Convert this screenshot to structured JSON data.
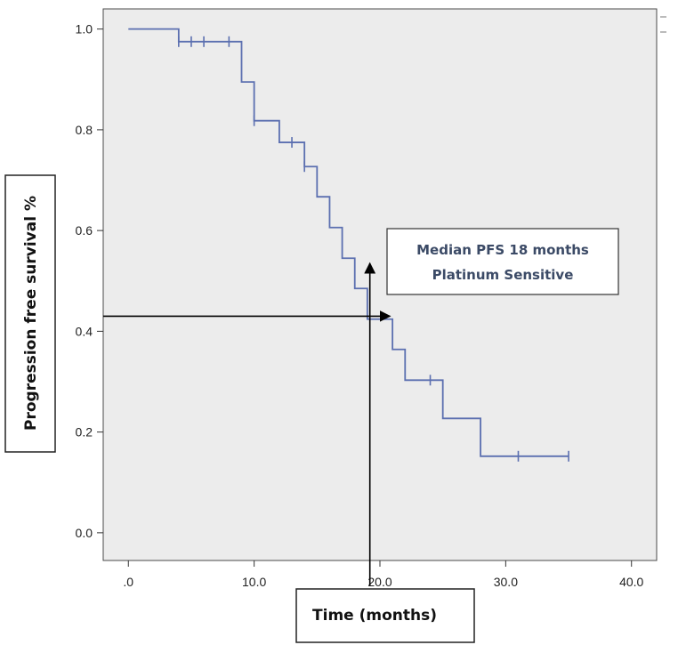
{
  "chart_data": {
    "type": "line",
    "subtype": "kaplan-meier step curve",
    "xlabel": "Time (months)",
    "ylabel": "Progression free survival %",
    "xlim": [
      -2,
      42
    ],
    "ylim": [
      -0.055,
      1.04
    ],
    "x_ticks": [
      0,
      10,
      20,
      30,
      40
    ],
    "x_tick_labels": [
      ".0",
      "10.0",
      "20.0",
      "30.0",
      "40.0"
    ],
    "y_ticks": [
      0,
      0.2,
      0.4,
      0.6,
      0.8,
      1.0
    ],
    "y_tick_labels": [
      "0.0",
      "0.2",
      "0.4",
      "0.6",
      "0.8",
      "1.0"
    ],
    "grid": false,
    "colors": {
      "curve": "#5b6fb0",
      "panel": "#ececec",
      "annotation": "#000000",
      "annotation_text": "#3b4a66"
    },
    "series": [
      {
        "name": "Platinum Sensitive",
        "steps": [
          {
            "x": 0,
            "y": 1.0
          },
          {
            "x": 4,
            "y": 0.975
          },
          {
            "x": 9,
            "y": 0.895
          },
          {
            "x": 10,
            "y": 0.818
          },
          {
            "x": 12,
            "y": 0.775
          },
          {
            "x": 14,
            "y": 0.727
          },
          {
            "x": 15,
            "y": 0.667
          },
          {
            "x": 16,
            "y": 0.606
          },
          {
            "x": 17,
            "y": 0.545
          },
          {
            "x": 18,
            "y": 0.485
          },
          {
            "x": 19,
            "y": 0.424
          },
          {
            "x": 21,
            "y": 0.364
          },
          {
            "x": 22,
            "y": 0.303
          },
          {
            "x": 25,
            "y": 0.227
          },
          {
            "x": 28,
            "y": 0.152
          }
        ],
        "end_x": 35,
        "censored": [
          {
            "x": 4,
            "y": 0.975
          },
          {
            "x": 5,
            "y": 0.975
          },
          {
            "x": 6,
            "y": 0.975
          },
          {
            "x": 8,
            "y": 0.975
          },
          {
            "x": 10,
            "y": 0.818
          },
          {
            "x": 13,
            "y": 0.775
          },
          {
            "x": 14,
            "y": 0.727
          },
          {
            "x": 24,
            "y": 0.303
          },
          {
            "x": 31,
            "y": 0.152
          },
          {
            "x": 35,
            "y": 0.152
          }
        ]
      }
    ],
    "annotation": {
      "lines": [
        "Median PFS 18 months",
        "Platinum Sensitive"
      ],
      "horizontal_arrow": {
        "y": 0.43,
        "x_to": 20.8
      },
      "vertical_arrow": {
        "x": 19.2,
        "y_to": 0.535
      }
    }
  }
}
